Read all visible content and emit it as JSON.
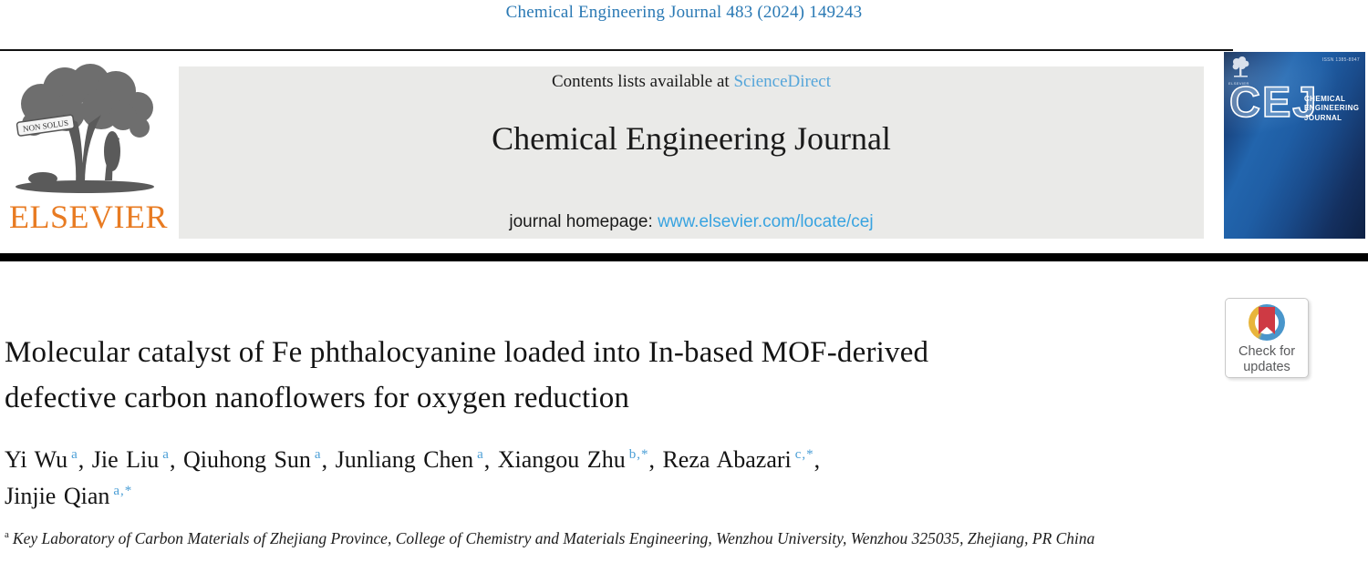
{
  "colors": {
    "journal_ref_blue": "#2a79b4",
    "link_blue": "#56a6da",
    "homepage_url_blue": "#38a3e0",
    "author_sup_blue": "#4a9ed6",
    "elsevier_orange": "#e87b22",
    "masthead_gray": "#eaeae8",
    "cover_navy": "#14305e",
    "badge_red": "#ce3a44",
    "badge_blue": "#4996cb",
    "badge_yellow": "#e8b53b",
    "badge_text_gray": "#58595b"
  },
  "icons": {
    "elsevier_tree": "tree-engraving-logo",
    "badge_icon": "crossmark-ring-with-bookmark"
  },
  "header": {
    "journal_ref": "Chemical Engineering Journal 483 (2024) 149243"
  },
  "masthead": {
    "contents_text": "Contents lists available at",
    "sciencedirect_link": "ScienceDirect",
    "journal_title": "Chemical Engineering Journal",
    "homepage_label": "journal homepage:",
    "homepage_url": "www.elsevier.com/locate/cej",
    "elsevier_wordmark": "ELSEVIER",
    "elsevier_motto": "NON SOLUS"
  },
  "cover": {
    "issn": "ISSN 1385-8947",
    "acronym": "CEJ",
    "title_lines": [
      "CHEMICAL",
      "ENGINEERING",
      "JOURNAL"
    ],
    "publisher_small": "ELSEVIER"
  },
  "badge": {
    "line1": "Check for",
    "line2": "updates"
  },
  "article": {
    "title_line1": "Molecular catalyst of Fe phthalocyanine loaded into In-based MOF-derived",
    "title_line2": "defective carbon nanoflowers for oxygen reduction",
    "authors_line1": [
      {
        "name": "Yi Wu",
        "sup": "a",
        "sep": ", "
      },
      {
        "name": "Jie Liu",
        "sup": "a",
        "sep": ", "
      },
      {
        "name": "Qiuhong Sun",
        "sup": "a",
        "sep": ", "
      },
      {
        "name": "Junliang Chen",
        "sup": "a",
        "sep": ", "
      },
      {
        "name": "Xiangou Zhu",
        "sup": "b,*",
        "sep": ", "
      },
      {
        "name": "Reza Abazari",
        "sup": "c,*",
        "sep": ","
      }
    ],
    "authors_line2": [
      {
        "name": "Jinjie Qian",
        "sup": "a,*",
        "sep": ""
      }
    ],
    "affiliation_sup": "a",
    "affiliation": "Key Laboratory of Carbon Materials of Zhejiang Province, College of Chemistry and Materials Engineering, Wenzhou University, Wenzhou 325035, Zhejiang, PR China"
  }
}
